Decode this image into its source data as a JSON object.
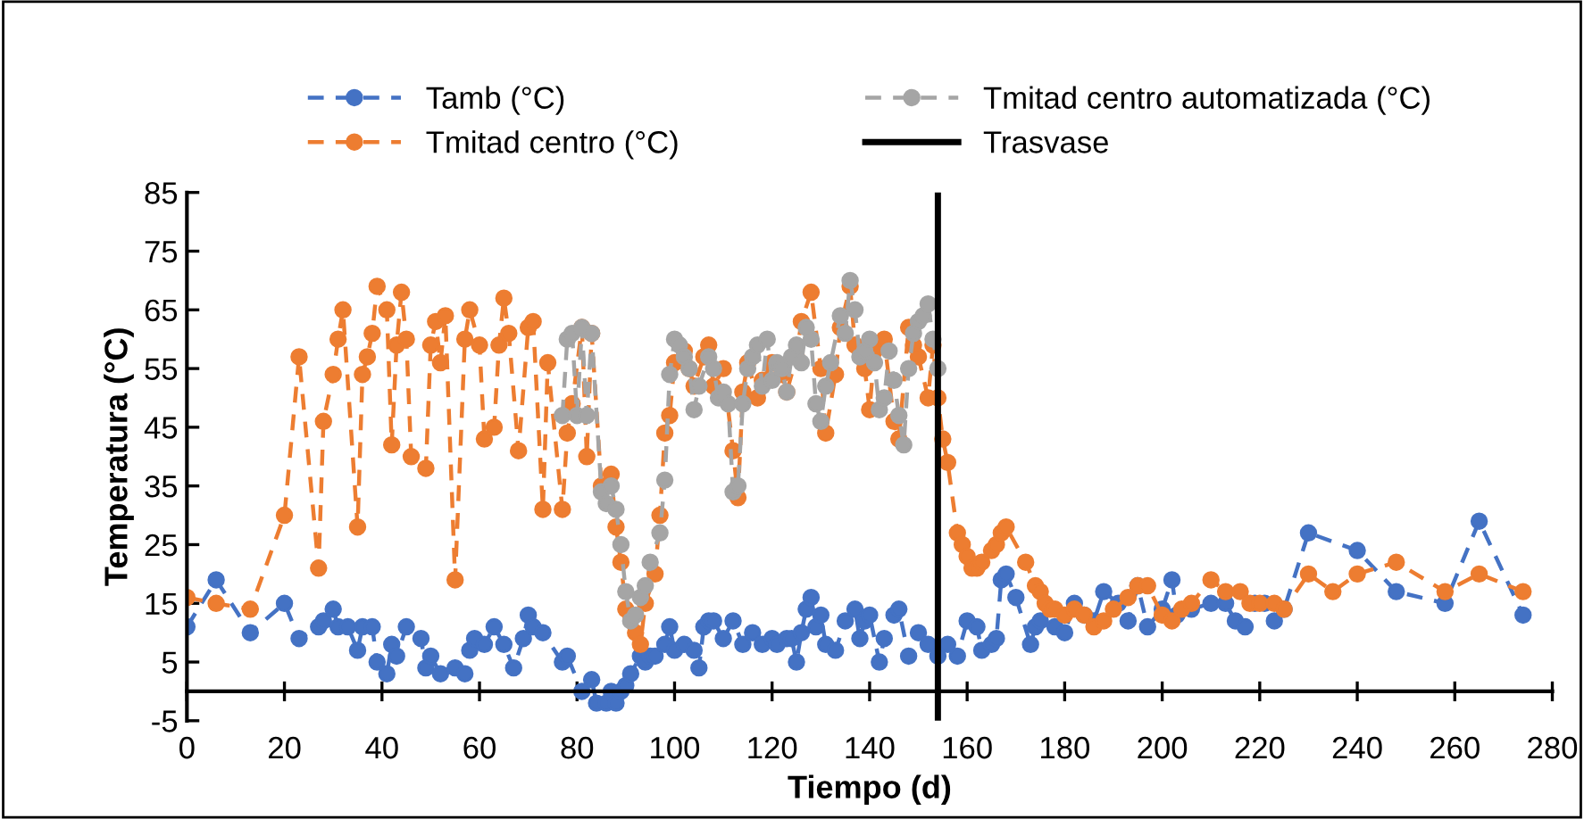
{
  "chart_data": {
    "type": "line",
    "xlabel": "Tiempo (d)",
    "ylabel": "Temperatura (°C)",
    "xlim": [
      0,
      280
    ],
    "xticks": [
      0,
      20,
      40,
      60,
      80,
      100,
      120,
      140,
      160,
      180,
      200,
      220,
      240,
      260,
      280
    ],
    "ylim": [
      -5,
      85
    ],
    "yticks": [
      -5,
      5,
      15,
      25,
      35,
      45,
      55,
      65,
      75,
      85
    ],
    "grid": false,
    "legend": "top",
    "marker": "circle",
    "line_style": "dashed",
    "series": [
      {
        "name": "Tamb (°C)",
        "color": "#4472c4",
        "x": [
          0,
          6,
          13,
          20,
          23,
          27,
          28,
          30,
          31,
          33,
          35,
          36,
          38,
          39,
          41,
          42,
          43,
          45,
          48,
          49,
          50,
          52,
          55,
          57,
          58,
          59,
          61,
          63,
          65,
          67,
          69,
          70,
          71,
          73,
          77,
          78,
          81,
          83,
          84,
          86,
          87,
          88,
          89,
          90,
          91,
          93,
          94,
          95,
          96,
          98,
          99,
          100,
          102,
          104,
          105,
          106,
          107,
          108,
          110,
          112,
          114,
          116,
          118,
          120,
          121,
          123,
          124,
          125,
          126,
          127,
          128,
          129,
          130,
          131,
          133,
          135,
          137,
          138,
          139,
          140,
          142,
          143,
          145,
          146,
          148,
          150,
          152,
          154,
          156,
          158,
          160,
          162,
          163,
          165,
          166,
          167,
          168,
          170,
          173,
          174,
          175,
          178,
          180,
          182,
          184,
          186,
          188,
          191,
          193,
          195,
          197,
          200,
          202,
          203,
          206,
          210,
          213,
          215,
          217,
          219,
          221,
          223,
          225,
          230,
          240,
          248,
          258,
          265,
          274
        ],
        "values": [
          11,
          19,
          10,
          15,
          9,
          11,
          12,
          14,
          11,
          11,
          7,
          11,
          11,
          5,
          3,
          8,
          6,
          11,
          9,
          4,
          6,
          3,
          4,
          3,
          7,
          9,
          8,
          11,
          8,
          4,
          9,
          13,
          11,
          10,
          5,
          6,
          0,
          2,
          -2,
          -2,
          0,
          -2,
          0,
          1,
          3,
          6,
          5,
          6,
          6,
          8,
          11,
          7,
          8,
          7,
          4,
          11,
          12,
          12,
          9,
          12,
          8,
          10,
          8,
          9,
          8,
          9,
          9,
          5,
          10,
          14,
          16,
          11,
          13,
          8,
          7,
          12,
          14,
          9,
          12,
          13,
          5,
          9,
          13,
          14,
          6,
          10,
          8,
          6,
          8,
          6,
          12,
          11,
          7,
          8,
          9,
          19,
          20,
          16,
          8,
          11,
          12,
          11,
          10,
          15,
          13,
          12,
          17,
          15,
          12,
          18,
          11,
          14,
          19,
          13,
          14,
          15,
          15,
          12,
          11,
          15,
          15,
          12,
          14,
          27,
          24,
          17,
          15,
          29,
          13
        ]
      },
      {
        "name": "Tmitad centro (°C)",
        "color": "#ed7d31",
        "x": [
          0,
          6,
          13,
          20,
          23,
          27,
          28,
          30,
          31,
          32,
          35,
          36,
          37,
          38,
          39,
          41,
          42,
          43,
          44,
          45,
          46,
          49,
          50,
          51,
          52,
          53,
          55,
          57,
          58,
          60,
          61,
          63,
          64,
          65,
          66,
          68,
          70,
          71,
          73,
          74,
          77,
          78,
          79,
          81,
          82,
          83,
          85,
          87,
          88,
          89,
          90,
          91,
          92,
          93,
          94,
          96,
          97,
          98,
          99,
          100,
          102,
          103,
          104,
          106,
          107,
          108,
          110,
          112,
          113,
          114,
          115,
          117,
          118,
          120,
          122,
          123,
          125,
          126,
          128,
          130,
          131,
          133,
          134,
          136,
          137,
          139,
          140,
          141,
          143,
          145,
          146,
          148,
          149,
          150,
          152,
          153,
          154,
          155,
          156,
          158,
          159,
          160,
          161,
          162,
          163,
          165,
          166,
          167,
          168,
          172,
          174,
          175,
          176,
          177,
          178,
          180,
          182,
          184,
          186,
          188,
          190,
          193,
          195,
          197,
          200,
          202,
          204,
          206,
          210,
          213,
          216,
          218,
          220,
          223,
          225,
          230,
          235,
          240,
          248,
          258,
          265,
          274
        ],
        "values": [
          16,
          15,
          14,
          30,
          57,
          21,
          46,
          54,
          60,
          65,
          28,
          54,
          57,
          61,
          69,
          65,
          42,
          59,
          68,
          60,
          40,
          38,
          59,
          63,
          56,
          64,
          19,
          60,
          65,
          59,
          43,
          45,
          59,
          67,
          61,
          41,
          62,
          63,
          31,
          56,
          31,
          44,
          49,
          62,
          40,
          61,
          35,
          37,
          28,
          22,
          14,
          13,
          10,
          8,
          15,
          20,
          30,
          44,
          47,
          56,
          58,
          55,
          52,
          57,
          59,
          52,
          55,
          41,
          33,
          51,
          56,
          50,
          53,
          56,
          54,
          51,
          57,
          63,
          68,
          55,
          44,
          54,
          62,
          69,
          59,
          55,
          48,
          58,
          60,
          46,
          43,
          62,
          59,
          57,
          50,
          59,
          50,
          43,
          39,
          27,
          25,
          23,
          21,
          21,
          22,
          24,
          25,
          27,
          28,
          22,
          18,
          17,
          15,
          14,
          14,
          13,
          14,
          13,
          11,
          12,
          14,
          16,
          18,
          18,
          13,
          12,
          14,
          15,
          19,
          17,
          17,
          15,
          15,
          15,
          14,
          20,
          17,
          20,
          22,
          17,
          20,
          17
        ]
      },
      {
        "name": "Tmitad centro automatizada (°C)",
        "color": "#a5a5a5",
        "x": [
          77,
          78,
          79,
          80,
          81,
          82,
          83,
          85,
          86,
          87,
          88,
          89,
          90,
          91,
          92,
          93,
          94,
          95,
          97,
          98,
          99,
          100,
          101,
          102,
          103,
          104,
          105,
          107,
          108,
          109,
          110,
          111,
          112,
          113,
          114,
          115,
          116,
          117,
          118,
          119,
          120,
          121,
          122,
          123,
          124,
          125,
          126,
          127,
          128,
          129,
          130,
          131,
          132,
          134,
          135,
          136,
          137,
          138,
          139,
          140,
          141,
          142,
          143,
          144,
          145,
          146,
          147,
          148,
          149,
          150,
          151,
          152,
          153,
          154
        ],
        "values": [
          47,
          60,
          61,
          47,
          62,
          47,
          61,
          34,
          32,
          35,
          31,
          25,
          17,
          12,
          13,
          16,
          18,
          22,
          27,
          36,
          54,
          60,
          59,
          57,
          55,
          48,
          52,
          57,
          55,
          50,
          51,
          49,
          34,
          35,
          49,
          55,
          57,
          59,
          52,
          60,
          53,
          56,
          55,
          51,
          57,
          59,
          56,
          62,
          60,
          49,
          46,
          52,
          56,
          64,
          61,
          70,
          65,
          57,
          58,
          60,
          56,
          48,
          50,
          58,
          53,
          47,
          42,
          55,
          61,
          63,
          64,
          66,
          60,
          55
        ]
      }
    ],
    "ref_lines": [
      {
        "axis": "x",
        "value": 154,
        "label": "Trasvase",
        "color": "#000000",
        "line_style": "solid"
      }
    ]
  }
}
